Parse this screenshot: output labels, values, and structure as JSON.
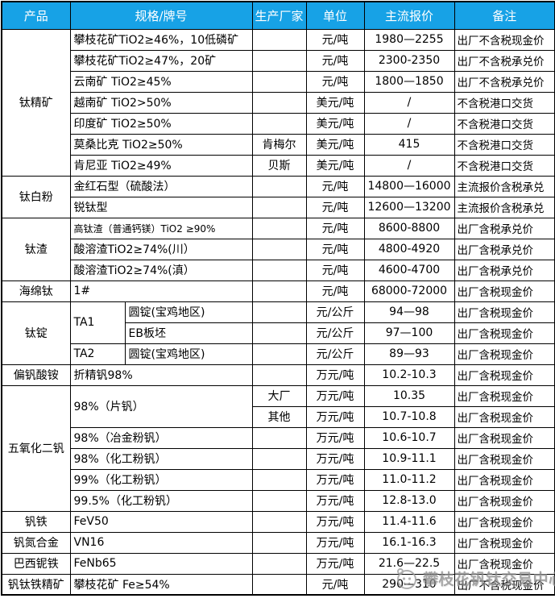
{
  "header": {
    "bg_color": "#17A2E6",
    "text_color": "#FFFFFF",
    "columns": [
      {
        "label": "产品"
      },
      {
        "label": "规格/牌号"
      },
      {
        "label": "生产厂家"
      },
      {
        "label": "单位"
      },
      {
        "label": "主流报价"
      },
      {
        "label": "备注"
      }
    ]
  },
  "table": {
    "rows": [
      [
        {
          "t": "钛精矿",
          "c": "prod",
          "rs": 7
        },
        {
          "t": "攀枝花矿TiO2≥46%，10低磷矿",
          "c": "spec",
          "cs": 2
        },
        {
          "t": "",
          "c": "maker"
        },
        {
          "t": "元/吨",
          "c": "unit"
        },
        {
          "t": "1980—2255",
          "c": "price"
        },
        {
          "t": "出厂不含税现金价",
          "c": "note"
        }
      ],
      [
        {
          "t": "攀枝花矿TiO2≥47%，20矿",
          "c": "spec",
          "cs": 2
        },
        {
          "t": "",
          "c": "maker"
        },
        {
          "t": "元/吨",
          "c": "unit"
        },
        {
          "t": "2300-2350",
          "c": "price"
        },
        {
          "t": "出厂不含税承兑价",
          "c": "note"
        }
      ],
      [
        {
          "t": "云南矿 TiO2≥45%",
          "c": "spec",
          "cs": 2
        },
        {
          "t": "",
          "c": "maker"
        },
        {
          "t": "元/吨",
          "c": "unit"
        },
        {
          "t": "1800—1850",
          "c": "price"
        },
        {
          "t": "出厂不含税承兑价",
          "c": "note"
        }
      ],
      [
        {
          "t": "越南矿 TiO2>50%",
          "c": "spec",
          "cs": 2
        },
        {
          "t": "",
          "c": "maker"
        },
        {
          "t": "美元/吨",
          "c": "unit"
        },
        {
          "t": "/",
          "c": "price"
        },
        {
          "t": "不含税港口交货",
          "c": "note"
        }
      ],
      [
        {
          "t": "印度矿 TiO2≥50%",
          "c": "spec",
          "cs": 2
        },
        {
          "t": "",
          "c": "maker"
        },
        {
          "t": "美元/吨",
          "c": "unit"
        },
        {
          "t": "/",
          "c": "price"
        },
        {
          "t": "不含税港口交货",
          "c": "note"
        }
      ],
      [
        {
          "t": "莫桑比克 TiO2≥50%",
          "c": "spec",
          "cs": 2
        },
        {
          "t": "肯梅尔",
          "c": "maker"
        },
        {
          "t": "美元/吨",
          "c": "unit"
        },
        {
          "t": "415",
          "c": "price"
        },
        {
          "t": "不含税港口交货",
          "c": "note"
        }
      ],
      [
        {
          "t": "肯尼亚 TiO2≥49%",
          "c": "spec",
          "cs": 2
        },
        {
          "t": "贝斯",
          "c": "maker"
        },
        {
          "t": "美元/吨",
          "c": "unit"
        },
        {
          "t": "/",
          "c": "price"
        },
        {
          "t": "不含税港口交货",
          "c": "note"
        }
      ],
      [
        {
          "t": "钛白粉",
          "c": "prod",
          "rs": 2
        },
        {
          "t": "金红石型（硫酸法）",
          "c": "spec",
          "cs": 2
        },
        {
          "t": "",
          "c": "maker"
        },
        {
          "t": "元/吨",
          "c": "unit"
        },
        {
          "t": "14800—16000",
          "c": "price"
        },
        {
          "t": "主流报价含税承兑",
          "c": "note"
        }
      ],
      [
        {
          "t": "锐钛型",
          "c": "spec",
          "cs": 2
        },
        {
          "t": "",
          "c": "maker"
        },
        {
          "t": "元/吨",
          "c": "unit"
        },
        {
          "t": "12600—13200",
          "c": "price"
        },
        {
          "t": "主流报价含税承兑",
          "c": "note"
        }
      ],
      [
        {
          "t": "钛渣",
          "c": "prod",
          "rs": 3
        },
        {
          "t": "高钛渣（普通钙镁）TiO2 ≥90%",
          "c": "spec sm",
          "cs": 2
        },
        {
          "t": "",
          "c": "maker"
        },
        {
          "t": "元/吨",
          "c": "unit"
        },
        {
          "t": "8600-8800",
          "c": "price"
        },
        {
          "t": "出厂含税承兑价",
          "c": "note"
        }
      ],
      [
        {
          "t": "酸溶渣TiO2≥74%(川）",
          "c": "spec",
          "cs": 2
        },
        {
          "t": "",
          "c": "maker"
        },
        {
          "t": "元/吨",
          "c": "unit"
        },
        {
          "t": "4800-4920",
          "c": "price"
        },
        {
          "t": "出厂含税承兑价",
          "c": "note"
        }
      ],
      [
        {
          "t": "酸溶渣TiO2≥74%(滇）",
          "c": "spec",
          "cs": 2
        },
        {
          "t": "",
          "c": "maker"
        },
        {
          "t": "元/吨",
          "c": "unit"
        },
        {
          "t": "4600-4700",
          "c": "price"
        },
        {
          "t": "出厂含税承兑价",
          "c": "note"
        }
      ],
      [
        {
          "t": "海绵钛",
          "c": "prod"
        },
        {
          "t": "1#",
          "c": "spec",
          "cs": 2
        },
        {
          "t": "",
          "c": "maker"
        },
        {
          "t": "元/吨",
          "c": "unit"
        },
        {
          "t": "68000-72000",
          "c": "price"
        },
        {
          "t": "出厂含税现金价",
          "c": "note"
        }
      ],
      [
        {
          "t": "钛锭",
          "c": "prod",
          "rs": 3
        },
        {
          "t": "TA1",
          "c": "specA",
          "rs": 2
        },
        {
          "t": "圆锭(宝鸡地区)",
          "c": "spec"
        },
        {
          "t": "",
          "c": "maker"
        },
        {
          "t": "元/公斤",
          "c": "unit"
        },
        {
          "t": "94—98",
          "c": "price"
        },
        {
          "t": "出厂含税现金价",
          "c": "note"
        }
      ],
      [
        {
          "t": "EB板坯",
          "c": "spec"
        },
        {
          "t": "",
          "c": "maker"
        },
        {
          "t": "元/公斤",
          "c": "unit"
        },
        {
          "t": "97—100",
          "c": "price"
        },
        {
          "t": "出厂含税现金价",
          "c": "note"
        }
      ],
      [
        {
          "t": "TA2",
          "c": "specA"
        },
        {
          "t": "圆锭(宝鸡地区)",
          "c": "spec"
        },
        {
          "t": "",
          "c": "maker"
        },
        {
          "t": "元/公斤",
          "c": "unit"
        },
        {
          "t": "89—93",
          "c": "price"
        },
        {
          "t": "出厂含税现金价",
          "c": "note"
        }
      ],
      [
        {
          "t": "偏钒酸铵",
          "c": "prod"
        },
        {
          "t": "折精钒98%",
          "c": "spec",
          "cs": 2
        },
        {
          "t": "",
          "c": "maker"
        },
        {
          "t": "万元/吨",
          "c": "unit"
        },
        {
          "t": "10.2-10.3",
          "c": "price"
        },
        {
          "t": "出厂含税现金价",
          "c": "note"
        }
      ],
      [
        {
          "t": "五氧化二钒",
          "c": "prod",
          "rs": 6
        },
        {
          "t": "98%（片钒）",
          "c": "spec",
          "cs": 2,
          "rs": 2
        },
        {
          "t": "大厂",
          "c": "maker"
        },
        {
          "t": "万元/吨",
          "c": "unit"
        },
        {
          "t": "10.35",
          "c": "price"
        },
        {
          "t": "出厂含税现金价",
          "c": "note"
        }
      ],
      [
        {
          "t": "其他",
          "c": "maker"
        },
        {
          "t": "万元/吨",
          "c": "unit"
        },
        {
          "t": "10.7-10.8",
          "c": "price"
        },
        {
          "t": "出厂含税现金价",
          "c": "note"
        }
      ],
      [
        {
          "t": "98%（冶金粉钒）",
          "c": "spec",
          "cs": 2
        },
        {
          "t": "",
          "c": "maker"
        },
        {
          "t": "万元/吨",
          "c": "unit"
        },
        {
          "t": "10.6-10.7",
          "c": "price"
        },
        {
          "t": "出厂含税现金价",
          "c": "note"
        }
      ],
      [
        {
          "t": "98%（化工粉钒）",
          "c": "spec",
          "cs": 2
        },
        {
          "t": "",
          "c": "maker"
        },
        {
          "t": "万元/吨",
          "c": "unit"
        },
        {
          "t": "10.9-11.1",
          "c": "price"
        },
        {
          "t": "出厂含税现金价",
          "c": "note"
        }
      ],
      [
        {
          "t": "99%（化工粉钒）",
          "c": "spec",
          "cs": 2
        },
        {
          "t": "",
          "c": "maker"
        },
        {
          "t": "万元/吨",
          "c": "unit"
        },
        {
          "t": "11.0-11.2",
          "c": "price"
        },
        {
          "t": "出厂含税现金价",
          "c": "note"
        }
      ],
      [
        {
          "t": "99.5%（化工粉钒）",
          "c": "spec",
          "cs": 2
        },
        {
          "t": "",
          "c": "maker"
        },
        {
          "t": "万元/吨",
          "c": "unit"
        },
        {
          "t": "12.8-13.0",
          "c": "price"
        },
        {
          "t": "出厂含税现金价",
          "c": "note"
        }
      ],
      [
        {
          "t": "钒铁",
          "c": "prod"
        },
        {
          "t": "FeV50",
          "c": "spec",
          "cs": 2
        },
        {
          "t": "",
          "c": "maker"
        },
        {
          "t": "万元/吨",
          "c": "unit"
        },
        {
          "t": "11.4-11.6",
          "c": "price"
        },
        {
          "t": "出厂含税现金价",
          "c": "note"
        }
      ],
      [
        {
          "t": "钒氮合金",
          "c": "prod"
        },
        {
          "t": "VN16",
          "c": "spec",
          "cs": 2
        },
        {
          "t": "",
          "c": "maker"
        },
        {
          "t": "万元/吨",
          "c": "unit"
        },
        {
          "t": "16.1-16.3",
          "c": "price"
        },
        {
          "t": "出厂含税现金价",
          "c": "note"
        }
      ],
      [
        {
          "t": "巴西铌铁",
          "c": "prod"
        },
        {
          "t": "FeNb65",
          "c": "spec",
          "cs": 2
        },
        {
          "t": "",
          "c": "maker"
        },
        {
          "t": "万元/吨",
          "c": "unit"
        },
        {
          "t": "21.6—22.5",
          "c": "price"
        },
        {
          "t": "出厂含税现金价",
          "c": "note"
        }
      ],
      [
        {
          "t": "钒钛铁精矿",
          "c": "prod"
        },
        {
          "t": "攀枝花矿 Fe≥54%",
          "c": "spec",
          "cs": 2
        },
        {
          "t": "",
          "c": "maker"
        },
        {
          "t": "元/吨",
          "c": "unit"
        },
        {
          "t": "290—310",
          "c": "price"
        },
        {
          "t": "出厂不含税现金价",
          "c": "note"
        }
      ]
    ]
  },
  "watermark": {
    "text": "攀枝花钒钛交易中心",
    "color": "#8C8C8C"
  }
}
